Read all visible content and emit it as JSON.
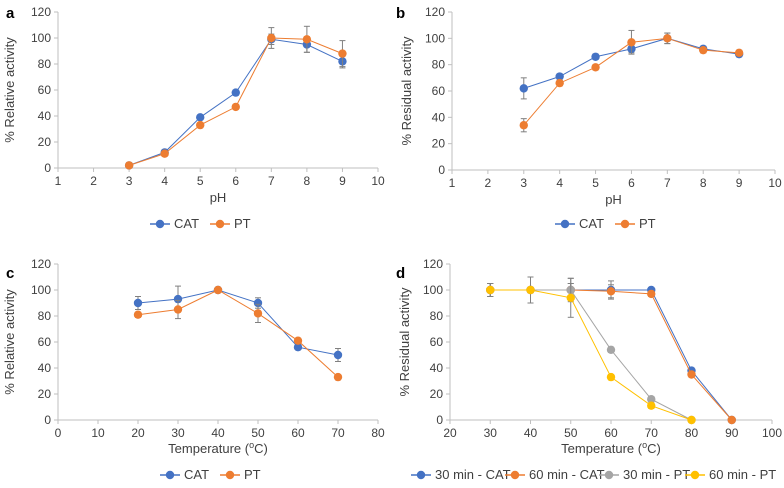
{
  "colors": {
    "blue": "#4472C4",
    "orange": "#ED7D31",
    "gray": "#A5A5A5",
    "yellow": "#FFC000",
    "axis": "#BFBFBF",
    "text": "#404040"
  },
  "chart_data": [
    {
      "panel": "a",
      "type": "line",
      "xlabel": "pH",
      "ylabel": "% Relative activity",
      "xlim": [
        1,
        10
      ],
      "ylim": [
        0,
        120
      ],
      "xstep": 1,
      "ystep": 20,
      "series": [
        {
          "name": "CAT",
          "color": "#4472C4",
          "x": [
            3,
            4,
            5,
            6,
            7,
            8,
            9
          ],
          "y": [
            2,
            12,
            39,
            58,
            99,
            95,
            82
          ],
          "err": [
            0,
            1,
            1,
            1,
            4,
            6,
            5
          ]
        },
        {
          "name": "PT",
          "color": "#ED7D31",
          "x": [
            3,
            4,
            5,
            6,
            7,
            8,
            9
          ],
          "y": [
            2,
            11,
            33,
            47,
            100,
            99,
            88
          ],
          "err": [
            0,
            1,
            1,
            1,
            8,
            10,
            10
          ]
        }
      ]
    },
    {
      "panel": "b",
      "type": "line",
      "xlabel": "pH",
      "ylabel": "% Residual activity",
      "xlim": [
        1,
        10
      ],
      "ylim": [
        0,
        120
      ],
      "xstep": 1,
      "ystep": 20,
      "series": [
        {
          "name": "CAT",
          "color": "#4472C4",
          "x": [
            3,
            4,
            5,
            6,
            7,
            8,
            9
          ],
          "y": [
            62,
            71,
            86,
            92,
            100,
            92,
            88
          ],
          "err": [
            8,
            2,
            2,
            3,
            4,
            2,
            2
          ]
        },
        {
          "name": "PT",
          "color": "#ED7D31",
          "x": [
            3,
            4,
            5,
            6,
            7,
            8,
            9
          ],
          "y": [
            34,
            66,
            78,
            97,
            100,
            91,
            89
          ],
          "err": [
            5,
            2,
            2,
            9,
            4,
            2,
            2
          ]
        }
      ]
    },
    {
      "panel": "c",
      "type": "line",
      "xlabel": "Temperature (oC)",
      "ylabel": "% Relative activity",
      "xlim": [
        0,
        80
      ],
      "ylim": [
        0,
        120
      ],
      "xstep": 10,
      "ystep": 20,
      "series": [
        {
          "name": "CAT",
          "color": "#4472C4",
          "x": [
            20,
            30,
            40,
            50,
            60,
            70
          ],
          "y": [
            90,
            93,
            100,
            90,
            56,
            50
          ],
          "err": [
            5,
            10,
            2,
            4,
            2,
            5
          ]
        },
        {
          "name": "PT",
          "color": "#ED7D31",
          "x": [
            20,
            30,
            40,
            50,
            60,
            70
          ],
          "y": [
            81,
            85,
            100,
            82,
            61,
            33
          ],
          "err": [
            2,
            7,
            2,
            7,
            2,
            2
          ]
        }
      ]
    },
    {
      "panel": "d",
      "type": "line",
      "xlabel": "Temperature (oC)",
      "ylabel": "% Residual activity",
      "xlim": [
        20,
        100
      ],
      "ylim": [
        0,
        120
      ],
      "xstep": 10,
      "ystep": 20,
      "series": [
        {
          "name": "30 min - CAT",
          "color": "#4472C4",
          "x": [
            30,
            40,
            50,
            60,
            70,
            80,
            90
          ],
          "y": [
            100,
            100,
            100,
            100,
            100,
            38,
            0
          ],
          "err": [
            5,
            10,
            5,
            7,
            2,
            2,
            0
          ]
        },
        {
          "name": "60 min - CAT",
          "color": "#ED7D31",
          "x": [
            30,
            40,
            50,
            60,
            70,
            80,
            90
          ],
          "y": [
            100,
            100,
            100,
            99,
            97,
            35,
            0
          ],
          "err": [
            5,
            10,
            5,
            5,
            2,
            2,
            0
          ]
        },
        {
          "name": "30 min - PT",
          "color": "#A5A5A5",
          "x": [
            30,
            40,
            50,
            60,
            70,
            80
          ],
          "y": [
            100,
            100,
            100,
            54,
            16,
            0
          ],
          "err": [
            5,
            10,
            9,
            2,
            2,
            0
          ]
        },
        {
          "name": "60 min - PT",
          "color": "#FFC000",
          "x": [
            30,
            40,
            50,
            60,
            70,
            80
          ],
          "y": [
            100,
            100,
            94,
            33,
            11,
            0
          ],
          "err": [
            5,
            10,
            15,
            2,
            2,
            0
          ]
        }
      ]
    }
  ]
}
